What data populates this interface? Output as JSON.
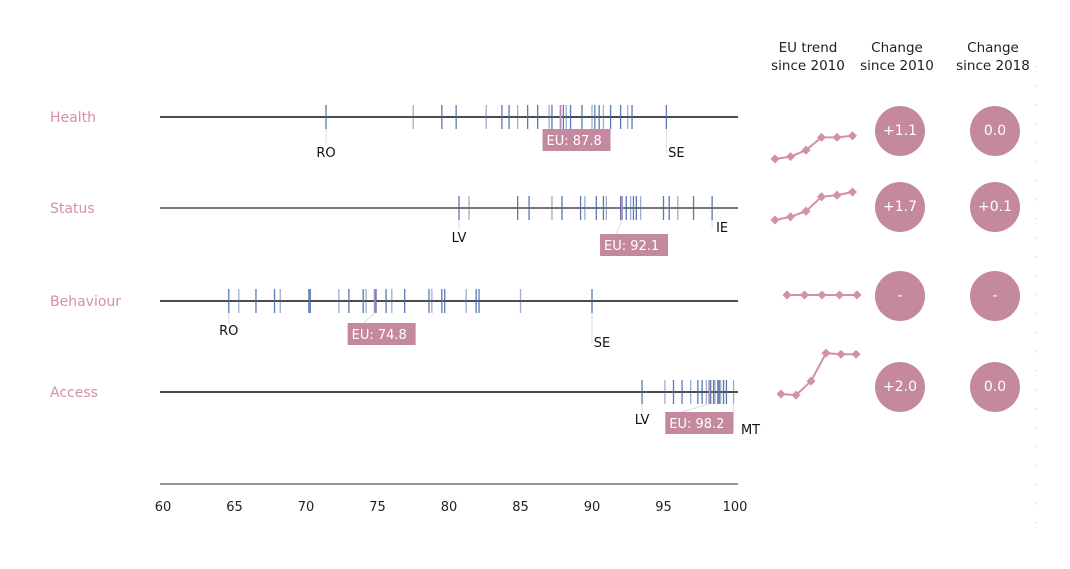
{
  "chart_data": {
    "type": "strip",
    "title": "",
    "xlabel": "",
    "ylabel": "",
    "xlim": [
      60,
      100
    ],
    "x_ticks": [
      60,
      65,
      70,
      75,
      80,
      85,
      90,
      95,
      100
    ],
    "grid": false,
    "colors": {
      "country_tick": "#4a6aa8",
      "eu_tick": "#b58ab5",
      "eu_box": "#c4899f",
      "label": "#d38fab",
      "bubble": "#c4899f",
      "trend": "#d38fab",
      "axis": "#111111"
    },
    "column_headers": [
      [
        "EU trend",
        "since 2010"
      ],
      [
        "Change",
        "since 2010"
      ],
      [
        "Change",
        "since 2018"
      ]
    ],
    "rows": [
      {
        "name": "Health",
        "eu_value": 87.8,
        "eu_label": "EU: 87.8",
        "min": {
          "code": "RO",
          "value": 71.4
        },
        "max": {
          "code": "SE",
          "value": 95.2
        },
        "countries": [
          71.4,
          77.5,
          79.5,
          80.5,
          82.6,
          83.7,
          84.2,
          84.8,
          85.5,
          86.2,
          87.0,
          87.2,
          88.0,
          88.2,
          88.5,
          89.3,
          90.0,
          90.2,
          90.5,
          90.8,
          91.3,
          92.0,
          92.5,
          92.8,
          95.2
        ],
        "trend": [
          0,
          0.15,
          0.55,
          1.35,
          1.35,
          1.45
        ],
        "change_2010": "+1.1",
        "change_2018": "0.0"
      },
      {
        "name": "Status",
        "eu_value": 92.1,
        "eu_label": "EU: 92.1",
        "min": {
          "code": "LV",
          "value": 80.7
        },
        "max": {
          "code": "IE",
          "value": 98.4
        },
        "countries": [
          80.7,
          81.4,
          84.8,
          85.6,
          87.2,
          87.9,
          89.2,
          89.5,
          90.3,
          90.8,
          91.0,
          92.0,
          92.4,
          92.7,
          92.9,
          93.1,
          93.4,
          95.0,
          95.4,
          96.0,
          97.1,
          98.4
        ],
        "trend": [
          0,
          0.2,
          0.55,
          1.45,
          1.55,
          1.75
        ],
        "change_2010": "+1.7",
        "change_2018": "+0.1"
      },
      {
        "name": "Behaviour",
        "eu_value": 74.8,
        "eu_label": "EU: 74.8",
        "min": {
          "code": "RO",
          "value": 64.6
        },
        "max": {
          "code": "SE",
          "value": 90.0
        },
        "countries": [
          64.6,
          65.3,
          66.5,
          67.8,
          68.2,
          70.2,
          70.3,
          72.3,
          73.0,
          74.0,
          74.2,
          74.9,
          75.6,
          76.0,
          76.9,
          78.6,
          78.8,
          79.5,
          79.7,
          81.2,
          81.9,
          82.1,
          85.0,
          90.0
        ],
        "trend": [
          0,
          0,
          0,
          0,
          0
        ],
        "change_2010": "-",
        "change_2018": "-"
      },
      {
        "name": "Access",
        "eu_value": 98.2,
        "eu_label": "EU: 98.2",
        "min": {
          "code": "LV",
          "value": 93.5
        },
        "max": {
          "code": "MT",
          "value": 99.9
        },
        "countries": [
          93.5,
          95.1,
          95.7,
          96.3,
          96.9,
          97.4,
          97.7,
          98.0,
          98.3,
          98.5,
          98.6,
          98.8,
          98.9,
          99.0,
          99.2,
          99.4,
          99.9
        ],
        "trend": [
          0,
          -0.05,
          0.6,
          1.9,
          1.85,
          1.85
        ],
        "change_2010": "+2.0",
        "change_2018": "0.0"
      }
    ]
  }
}
